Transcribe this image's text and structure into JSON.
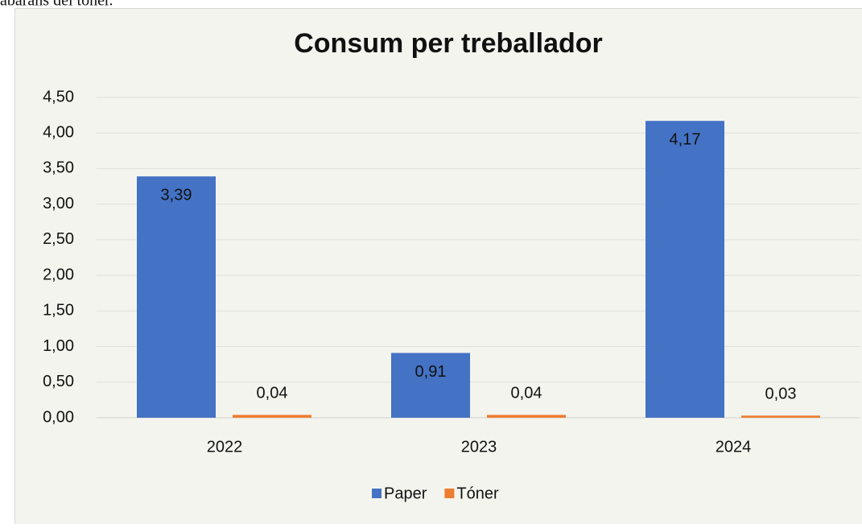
{
  "context_text": "abarans del tòner.",
  "chart_data": {
    "type": "bar",
    "title": "Consum per treballador",
    "categories": [
      "2022",
      "2023",
      "2024"
    ],
    "series": [
      {
        "name": "Paper",
        "color": "#4472c4",
        "values": [
          3.39,
          0.91,
          4.17
        ],
        "value_labels": [
          "3,39",
          "0,91",
          "4,17"
        ]
      },
      {
        "name": "Tóner",
        "color": "#ed7d31",
        "values": [
          0.04,
          0.04,
          0.03
        ],
        "value_labels": [
          "0,04",
          "0,04",
          "0,03"
        ]
      }
    ],
    "ylim": [
      0,
      4.5
    ],
    "yticks": [
      {
        "value": 0,
        "label": "0,00"
      },
      {
        "value": 0.5,
        "label": "0,50"
      },
      {
        "value": 1,
        "label": "1,00"
      },
      {
        "value": 1.5,
        "label": "1,50"
      },
      {
        "value": 2,
        "label": "2,00"
      },
      {
        "value": 2.5,
        "label": "2,50"
      },
      {
        "value": 3,
        "label": "3,00"
      },
      {
        "value": 3.5,
        "label": "3,50"
      },
      {
        "value": 4,
        "label": "4,00"
      },
      {
        "value": 4.5,
        "label": "4,50"
      }
    ],
    "grid": true,
    "legend": "bottom"
  }
}
